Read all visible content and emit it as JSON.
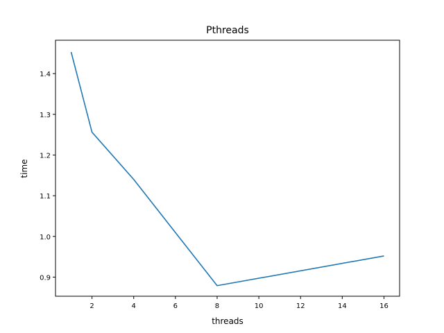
{
  "chart_data": {
    "type": "line",
    "title": "Pthreads",
    "xlabel": "threads",
    "ylabel": "time",
    "xlim": [
      0.25,
      16.75
    ],
    "ylim": [
      0.853,
      1.482
    ],
    "xticks": [
      2,
      4,
      6,
      8,
      10,
      12,
      14,
      16
    ],
    "yticks": [
      0.9,
      1.0,
      1.1,
      1.2,
      1.3,
      1.4
    ],
    "ytick_labels": [
      "0.9",
      "1.0",
      "1.1",
      "1.2",
      "1.3",
      "1.4"
    ],
    "grid": false,
    "series": [
      {
        "x": [
          1,
          2,
          4,
          8,
          16
        ],
        "y": [
          1.453,
          1.256,
          1.14,
          0.879,
          0.952
        ],
        "color": "#1f77b4"
      }
    ]
  }
}
